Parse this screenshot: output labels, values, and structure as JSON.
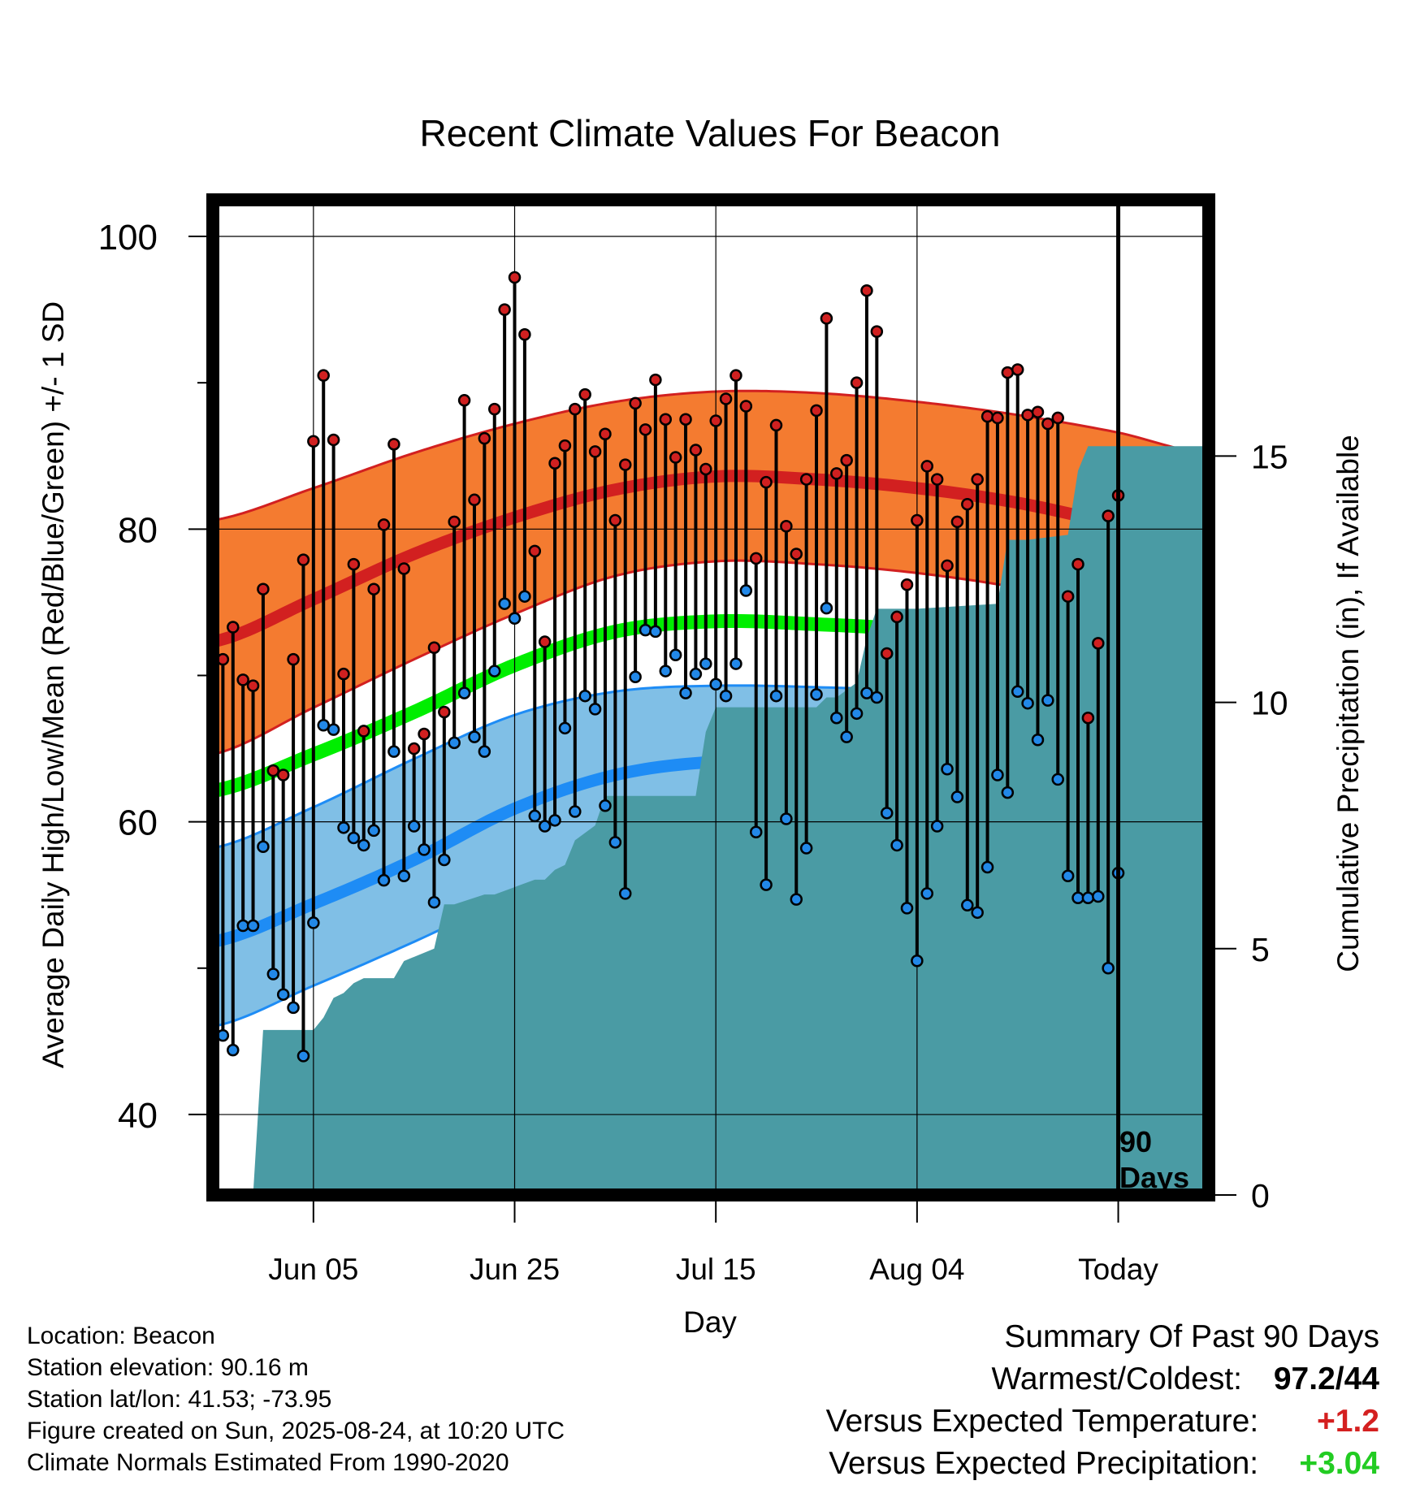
{
  "title": "Recent Climate Values For Beacon",
  "y_label": "Average Daily High/Low/Mean (Red/Blue/Green) +/- 1 SD",
  "y2_label": "Cumulative Precipitation (in), If Available",
  "x_label": "Day",
  "today_label": "Today",
  "period_label_line1": "90",
  "period_label_line2": "Days",
  "y_ticks": [
    "40",
    "60",
    "80",
    "100"
  ],
  "y2_ticks": [
    "0",
    "5",
    "10",
    "15"
  ],
  "x_ticks": [
    "Jun 05",
    "Jun 25",
    "Jul 15",
    "Aug 04",
    "Today"
  ],
  "footer": {
    "location": "Location: Beacon",
    "elevation": "Station elevation: 90.16 m",
    "latlon": "Station lat/lon: 41.53; -73.95",
    "created": "Figure created on Sun, 2025-08-24, at 10:20 UTC",
    "normals": "Climate Normals Estimated From 1990-2020"
  },
  "summary": {
    "heading": "Summary Of Past 90 Days",
    "warm_cold_label": "Warmest/Coldest:",
    "warmest": "97.2",
    "separator": "/",
    "coldest": "44",
    "temp_label": "Versus Expected Temperature:",
    "temp_value": "+1.2",
    "precip_label": "Versus Expected Precipitation:",
    "precip_value": "+3.04"
  },
  "colors": {
    "high_band": "#F47B30",
    "high_mean": "#D22020",
    "low_band": "#80BFE6",
    "low_mean": "#1E8CF5",
    "mean_line": "#00EE00",
    "precip": "#4A9BA4",
    "high_dot": "#D02020",
    "low_dot": "#2288E8",
    "positive_temp": "#D42020",
    "positive_precip": "#22CC22"
  },
  "chart_data": {
    "type": "line",
    "x_range_days": [
      -90,
      9
    ],
    "x_tick_days": [
      -80,
      -60,
      -40,
      -20,
      0
    ],
    "ylim": [
      34.5,
      102.5
    ],
    "y2lim": [
      0,
      20.2
    ],
    "normals": {
      "days": [
        -90,
        -80,
        -70,
        -60,
        -50,
        -40,
        -30,
        -20,
        -10,
        0,
        9
      ],
      "high_mean": [
        72.3,
        75.2,
        78.3,
        80.8,
        82.7,
        83.6,
        83.4,
        82.8,
        81.8,
        80.3,
        78.8
      ],
      "high_upper": [
        80.6,
        82.8,
        85.2,
        87.2,
        88.7,
        89.4,
        89.3,
        88.7,
        87.8,
        86.6,
        85.1
      ],
      "high_lower": [
        64.6,
        67.8,
        71.1,
        74.2,
        76.8,
        77.8,
        77.6,
        77.0,
        76.0,
        74.6,
        73.2
      ],
      "mean": [
        62.1,
        64.6,
        67.5,
        70.7,
        73.0,
        73.7,
        73.5,
        73.1,
        72.3,
        70.9,
        69.1
      ],
      "low_mean": [
        51.8,
        54.4,
        57.4,
        60.9,
        63.2,
        64.1,
        64.0,
        63.5,
        62.7,
        61.2,
        59.3
      ],
      "low_upper": [
        58.2,
        61.0,
        64.3,
        67.3,
        68.9,
        69.3,
        69.2,
        68.9,
        68.1,
        67.2,
        65.8
      ],
      "low_lower": [
        46.0,
        48.8,
        51.8,
        55.0,
        57.7,
        58.8,
        58.9,
        58.5,
        57.3,
        55.6,
        53.5
      ]
    },
    "observations": {
      "highs": [
        71.1,
        73.3,
        69.7,
        69.3,
        75.9,
        63.5,
        63.2,
        71.1,
        77.9,
        86.0,
        90.5,
        86.1,
        70.1,
        77.6,
        66.2,
        75.9,
        80.3,
        85.8,
        77.3,
        65.0,
        66.0,
        71.9,
        67.5,
        80.5,
        88.8,
        82.0,
        86.2,
        88.2,
        95.0,
        97.2,
        93.3,
        78.5,
        72.3,
        84.5,
        85.7,
        88.2,
        89.2,
        85.3,
        86.5,
        80.6,
        84.4,
        88.6,
        86.8,
        90.2,
        87.5,
        84.9,
        87.5,
        85.4,
        84.1,
        87.4,
        88.9,
        90.5,
        88.4,
        78.0,
        83.2,
        87.1,
        80.2,
        78.3,
        83.4,
        88.1,
        94.4,
        83.8,
        84.7,
        90.0,
        96.3,
        93.5,
        71.5,
        74.0,
        76.2,
        80.6,
        84.3,
        83.4,
        77.5,
        80.5,
        81.7,
        83.4,
        87.7,
        87.6,
        90.7,
        90.9,
        87.8,
        88.0,
        87.2,
        87.6,
        75.4,
        77.6,
        67.1,
        72.2,
        80.9,
        82.3
      ],
      "lows": [
        45.4,
        44.4,
        52.9,
        52.9,
        58.3,
        49.6,
        48.2,
        47.3,
        44.0,
        53.1,
        66.6,
        66.3,
        59.6,
        58.9,
        58.4,
        59.4,
        56.0,
        64.8,
        56.3,
        59.7,
        58.1,
        54.5,
        57.4,
        65.4,
        68.8,
        65.8,
        64.8,
        70.3,
        74.9,
        73.9,
        75.4,
        60.4,
        59.7,
        60.1,
        66.4,
        60.7,
        68.6,
        67.7,
        61.1,
        58.6,
        55.1,
        69.9,
        73.1,
        73.0,
        70.3,
        71.4,
        68.8,
        70.1,
        70.8,
        69.4,
        68.6,
        70.8,
        75.8,
        59.3,
        55.7,
        68.6,
        60.2,
        54.7,
        58.2,
        68.7,
        74.6,
        67.1,
        65.8,
        67.4,
        68.8,
        68.5,
        60.6,
        58.4,
        54.1,
        50.5,
        55.1,
        59.7,
        63.6,
        61.7,
        54.3,
        53.8,
        56.9,
        63.2,
        62.0,
        68.9,
        68.1,
        65.6,
        68.3,
        62.9,
        56.3,
        54.8,
        54.8,
        54.9,
        50.0,
        56.5
      ]
    },
    "cumulative_precip": {
      "days": [
        -89,
        -86,
        -85,
        -80,
        -79,
        -78,
        -77,
        -76,
        -75,
        -72,
        -71,
        -68,
        -67,
        -66,
        -63,
        -62,
        -58,
        -57,
        -56,
        -55,
        -54,
        -52,
        -51,
        -50,
        -42,
        -41,
        -40,
        -30,
        -29,
        -28,
        -26,
        -25,
        -24,
        -23,
        -22,
        -21,
        -20,
        -12,
        -11,
        -10,
        -9,
        -5,
        -4,
        -3,
        9
      ],
      "values": [
        0.0,
        0.0,
        3.35,
        3.35,
        3.6,
        4.0,
        4.1,
        4.3,
        4.4,
        4.4,
        4.75,
        5.0,
        5.9,
        5.9,
        6.1,
        6.1,
        6.4,
        6.4,
        6.6,
        6.7,
        7.2,
        7.5,
        8.1,
        8.1,
        8.1,
        9.4,
        9.9,
        9.9,
        10.1,
        10.1,
        10.4,
        11.3,
        11.9,
        11.9,
        11.9,
        11.9,
        11.9,
        12.0,
        13.3,
        13.3,
        13.3,
        13.4,
        14.7,
        15.2,
        15.2
      ]
    }
  }
}
